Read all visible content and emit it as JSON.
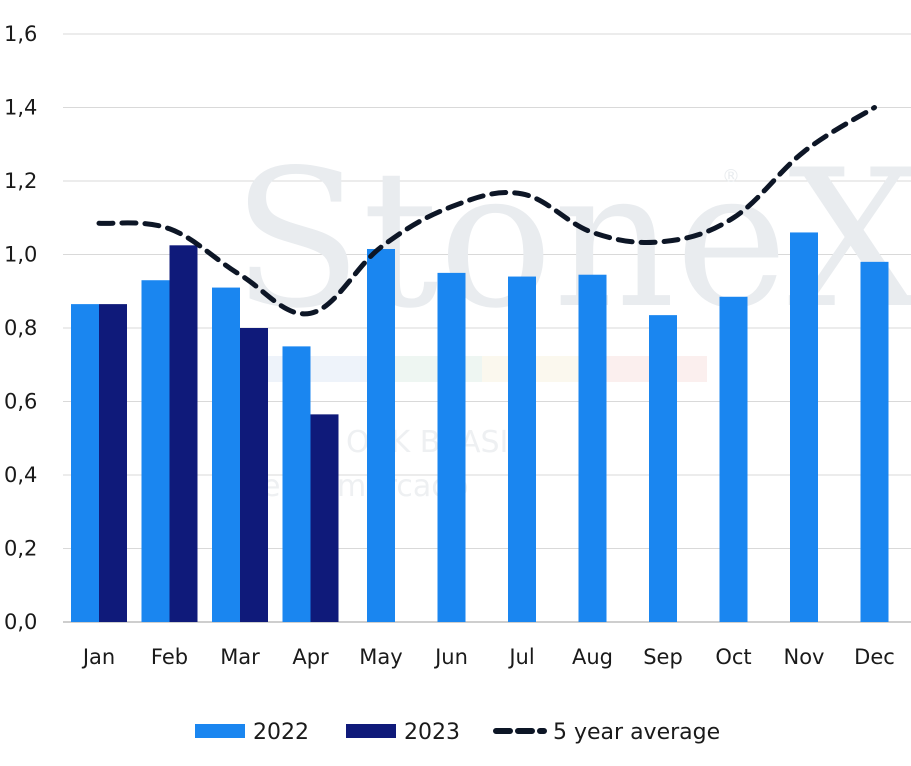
{
  "watermark": {
    "brand": "StoneX",
    "reg": "®",
    "line1": "OCK BRASIL",
    "line2": "e de mercado"
  },
  "chart_data": {
    "type": "bar",
    "categories": [
      "Jan",
      "Feb",
      "Mar",
      "Apr",
      "May",
      "Jun",
      "Jul",
      "Aug",
      "Sep",
      "Oct",
      "Nov",
      "Dec"
    ],
    "series": [
      {
        "name": "2022",
        "type": "bar",
        "color": "#1a86f0",
        "values": [
          0.865,
          0.93,
          0.91,
          0.75,
          1.015,
          0.95,
          0.94,
          0.945,
          0.835,
          0.885,
          1.06,
          0.98
        ]
      },
      {
        "name": "2023",
        "type": "bar",
        "color": "#0f1a7a",
        "values": [
          0.865,
          1.025,
          0.8,
          0.565,
          null,
          null,
          null,
          null,
          null,
          null,
          null,
          null
        ]
      },
      {
        "name": "5 year average",
        "type": "line",
        "style": "dashed",
        "color": "#0d1626",
        "values": [
          1.085,
          1.07,
          0.945,
          0.84,
          1.02,
          1.13,
          1.165,
          1.06,
          1.035,
          1.1,
          1.28,
          1.4
        ]
      }
    ],
    "yticks": [
      "0,0",
      "0,2",
      "0,4",
      "0,6",
      "0,8",
      "1,0",
      "1,2",
      "1,4",
      "1,6"
    ],
    "ylim": [
      0,
      1.6
    ],
    "grid": true,
    "legend_position": "bottom-center"
  }
}
